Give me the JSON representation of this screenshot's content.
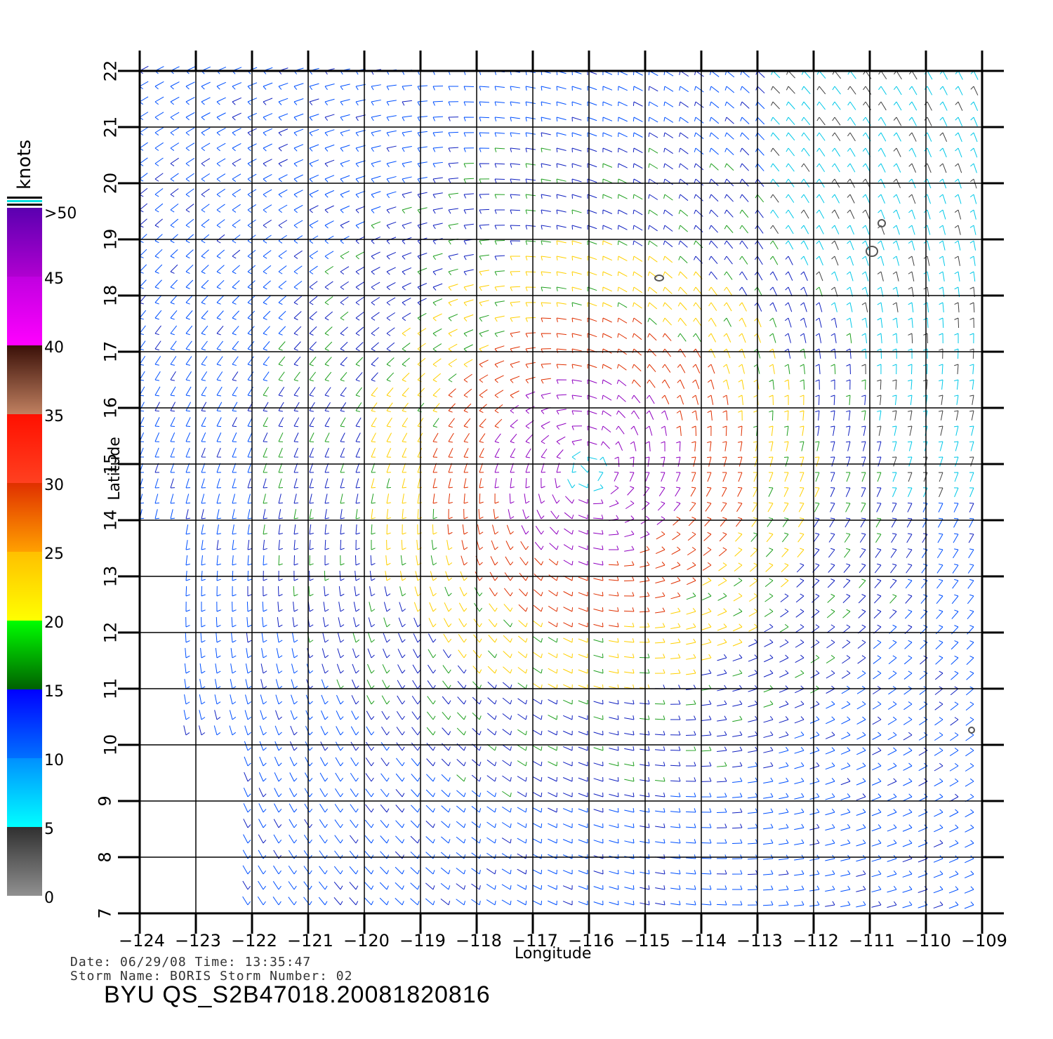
{
  "plot": {
    "lon_ticks": [
      "−124",
      "−123",
      "−122",
      "−121",
      "−120",
      "−119",
      "−118",
      "−117",
      "−116",
      "−115",
      "−114",
      "−113",
      "−112",
      "−111",
      "−110",
      "−109"
    ],
    "lat_ticks": [
      "22",
      "21",
      "20",
      "19",
      "18",
      "17",
      "16",
      "15",
      "14",
      "13",
      "12",
      "11",
      "10",
      "9",
      "8",
      "7"
    ],
    "xlabel": "Longitude",
    "ylabel": "Latitude",
    "lon_range": [
      -124,
      -109
    ],
    "lat_range": [
      7,
      22
    ],
    "storm_center": {
      "lon": -116.0,
      "lat": 14.9
    }
  },
  "colorbar": {
    "unit_label": "knots",
    "labels": [
      ">50",
      "45",
      "40",
      "35",
      "30",
      "25",
      "20",
      "15",
      "10",
      "5",
      "0"
    ],
    "colors": [
      "#6a00c8",
      "#c000e0",
      "#4a2010",
      "#ff2000",
      "#ff8800",
      "#ffe000",
      "#00c000",
      "#0000ff",
      "#00ffff",
      "#404040"
    ]
  },
  "meta": {
    "date_line": "Date:  06/29/08    Time:  13:35:47",
    "storm_line": "Storm  Name:  BORIS    Storm  Number:  02",
    "file_title": "BYU  QS_S2B47018.20081820816"
  }
}
